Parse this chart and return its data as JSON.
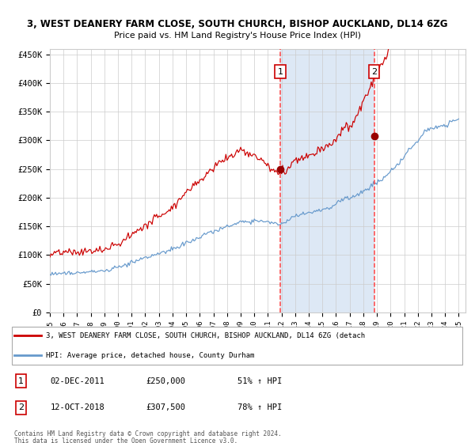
{
  "title1": "3, WEST DEANERY FARM CLOSE, SOUTH CHURCH, BISHOP AUCKLAND, DL14 6ZG",
  "title2": "Price paid vs. HM Land Registry's House Price Index (HPI)",
  "ylabel_ticks": [
    "£0",
    "£50K",
    "£100K",
    "£150K",
    "£200K",
    "£250K",
    "£300K",
    "£350K",
    "£400K",
    "£450K"
  ],
  "ytick_vals": [
    0,
    50000,
    100000,
    150000,
    200000,
    250000,
    300000,
    350000,
    400000,
    450000
  ],
  "ylim": [
    0,
    460000
  ],
  "xlim_start": 1995.0,
  "xlim_end": 2025.5,
  "sale1_x": 2011.92,
  "sale1_y": 250000,
  "sale2_x": 2018.79,
  "sale2_y": 307500,
  "vspan_x1": 2011.92,
  "vspan_x2": 2018.79,
  "red_line_color": "#cc0000",
  "blue_line_color": "#6699cc",
  "dot_color": "#990000",
  "vline_color": "#ff4444",
  "vspan_color": "#dde8f5",
  "grid_color": "#cccccc",
  "background_color": "#ffffff",
  "legend_line1": "3, WEST DEANERY FARM CLOSE, SOUTH CHURCH, BISHOP AUCKLAND, DL14 6ZG (detach",
  "legend_line2": "HPI: Average price, detached house, County Durham",
  "note1_date": "02-DEC-2011",
  "note1_price": "£250,000",
  "note1_hpi": "51% ↑ HPI",
  "note2_date": "12-OCT-2018",
  "note2_price": "£307,500",
  "note2_hpi": "78% ↑ HPI",
  "footer1": "Contains HM Land Registry data © Crown copyright and database right 2024.",
  "footer2": "This data is licensed under the Open Government Licence v3.0."
}
